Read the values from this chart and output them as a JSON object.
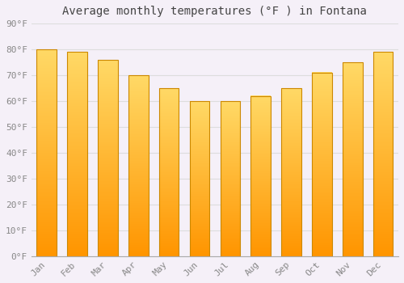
{
  "title": "Average monthly temperatures (°F ) in Fontana",
  "months": [
    "Jan",
    "Feb",
    "Mar",
    "Apr",
    "May",
    "Jun",
    "Jul",
    "Aug",
    "Sep",
    "Oct",
    "Nov",
    "Dec"
  ],
  "values": [
    80,
    79,
    76,
    70,
    65,
    60,
    60,
    62,
    65,
    71,
    75,
    79
  ],
  "bar_color_top": "#FFD966",
  "bar_color_bottom": "#FFA500",
  "bar_edge_color": "#CC8800",
  "background_color": "#F5F0F8",
  "plot_bg_color": "#F5F0F8",
  "grid_color": "#DDDDDD",
  "ylim": [
    0,
    90
  ],
  "ytick_step": 10,
  "title_fontsize": 10,
  "tick_fontsize": 8,
  "xlabel_rotation": 45,
  "bar_width": 0.65
}
